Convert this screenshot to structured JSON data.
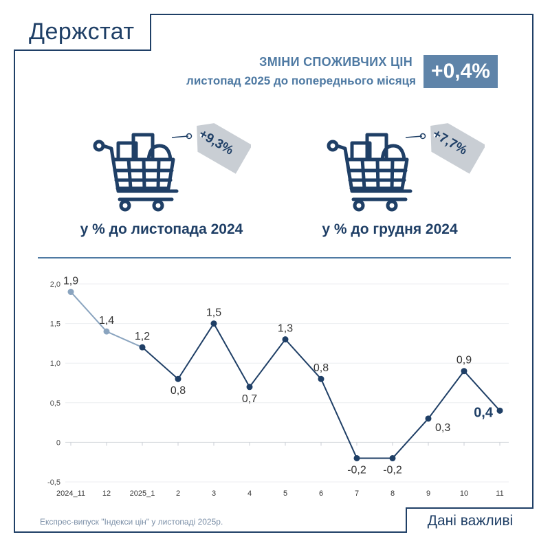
{
  "brand": {
    "logo_text": "Держстат"
  },
  "header": {
    "title": "ЗМІНИ СПОЖИВЧИХ ЦІН",
    "subtitle": "листопад 2025 до попереднього місяця",
    "badge": "+0,4%"
  },
  "kpis": [
    {
      "tag": "+9,3%",
      "label": "у % до листопада 2024"
    },
    {
      "tag": "+7,7%",
      "label": "у % до грудня 2024"
    }
  ],
  "colors": {
    "primary": "#1f3f66",
    "accent": "#5f84a9",
    "light_series": "#8aa4bf",
    "tag_gray": "#c9ced4"
  },
  "chart_data": {
    "type": "line",
    "x": [
      "2024_11",
      "12",
      "2025_1",
      "2",
      "3",
      "4",
      "5",
      "6",
      "7",
      "8",
      "9",
      "10",
      "11"
    ],
    "values": [
      1.9,
      1.4,
      1.2,
      0.8,
      1.5,
      0.7,
      1.3,
      0.8,
      -0.2,
      -0.2,
      0.3,
      0.9,
      0.4
    ],
    "data_labels": [
      "1,9",
      "1,4",
      "1,2",
      "0,8",
      "1,5",
      "0,7",
      "1,3",
      "0,8",
      "-0,2",
      "-0,2",
      "0,3",
      "0,9",
      "0,4"
    ],
    "label_positions": [
      "above",
      "above",
      "above",
      "below",
      "above",
      "below",
      "above",
      "above",
      "below",
      "below",
      "right",
      "above",
      "left"
    ],
    "y_ticks": [
      2.0,
      1.5,
      1.0,
      0.5,
      0,
      -0.5
    ],
    "y_tick_labels": [
      "2,0",
      "1,5",
      "1,0",
      "0,5",
      "0",
      "-0,5"
    ],
    "ylim": [
      -0.5,
      2.0
    ],
    "grid": true,
    "series_colors": {
      "2024": "#8aa4bf",
      "2025": "#1f3f66"
    },
    "highlight_last": true
  },
  "footer": {
    "source": "Експрес-випуск \"Індекси цін\" у листопаді 2025р.",
    "tagline": "Дані важливі"
  }
}
